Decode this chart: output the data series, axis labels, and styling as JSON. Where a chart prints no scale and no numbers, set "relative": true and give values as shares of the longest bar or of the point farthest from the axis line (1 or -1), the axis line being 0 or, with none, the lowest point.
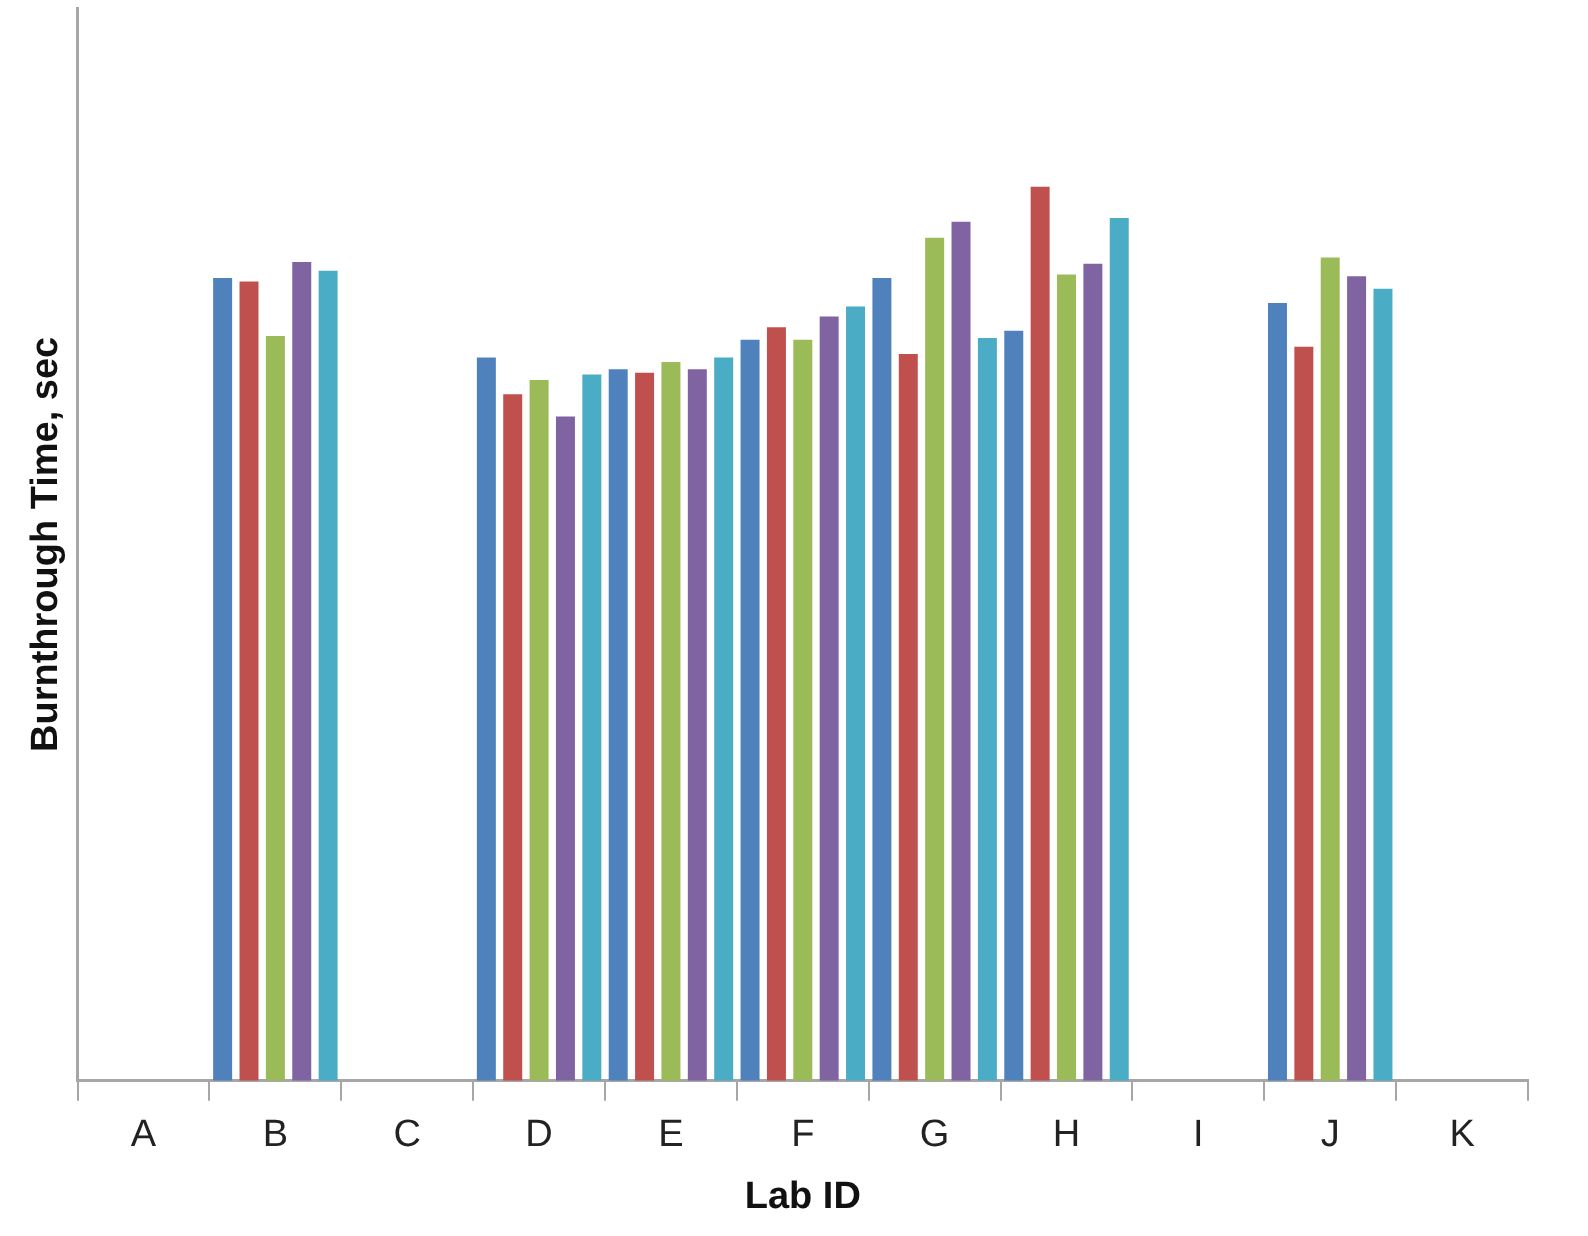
{
  "chart_data": {
    "type": "bar",
    "xlabel": "Lab ID",
    "ylabel": "Burnthrough Time, sec",
    "relative": true,
    "grid": false,
    "legend": false,
    "categories": [
      "A",
      "B",
      "C",
      "D",
      "E",
      "F",
      "G",
      "H",
      "I",
      "J",
      "K"
    ],
    "series": [
      {
        "color": "#4f81bd",
        "values": [
          null,
          0.898,
          null,
          0.809,
          0.796,
          0.829,
          0.898,
          0.839,
          null,
          0.87,
          null
        ]
      },
      {
        "color": "#c0504d",
        "values": [
          null,
          0.894,
          null,
          0.768,
          0.792,
          0.843,
          0.813,
          1,
          null,
          0.821,
          null
        ]
      },
      {
        "color": "#9bbb59",
        "values": [
          null,
          0.833,
          null,
          0.784,
          0.804,
          0.829,
          0.943,
          0.902,
          null,
          0.921,
          null
        ]
      },
      {
        "color": "#8064a2",
        "values": [
          null,
          0.916,
          null,
          0.743,
          0.796,
          0.855,
          0.961,
          0.914,
          null,
          0.9,
          null
        ]
      },
      {
        "color": "#4bacc6",
        "values": [
          null,
          0.906,
          null,
          0.79,
          0.809,
          0.866,
          0.831,
          0.965,
          null,
          0.886,
          null
        ]
      }
    ]
  }
}
